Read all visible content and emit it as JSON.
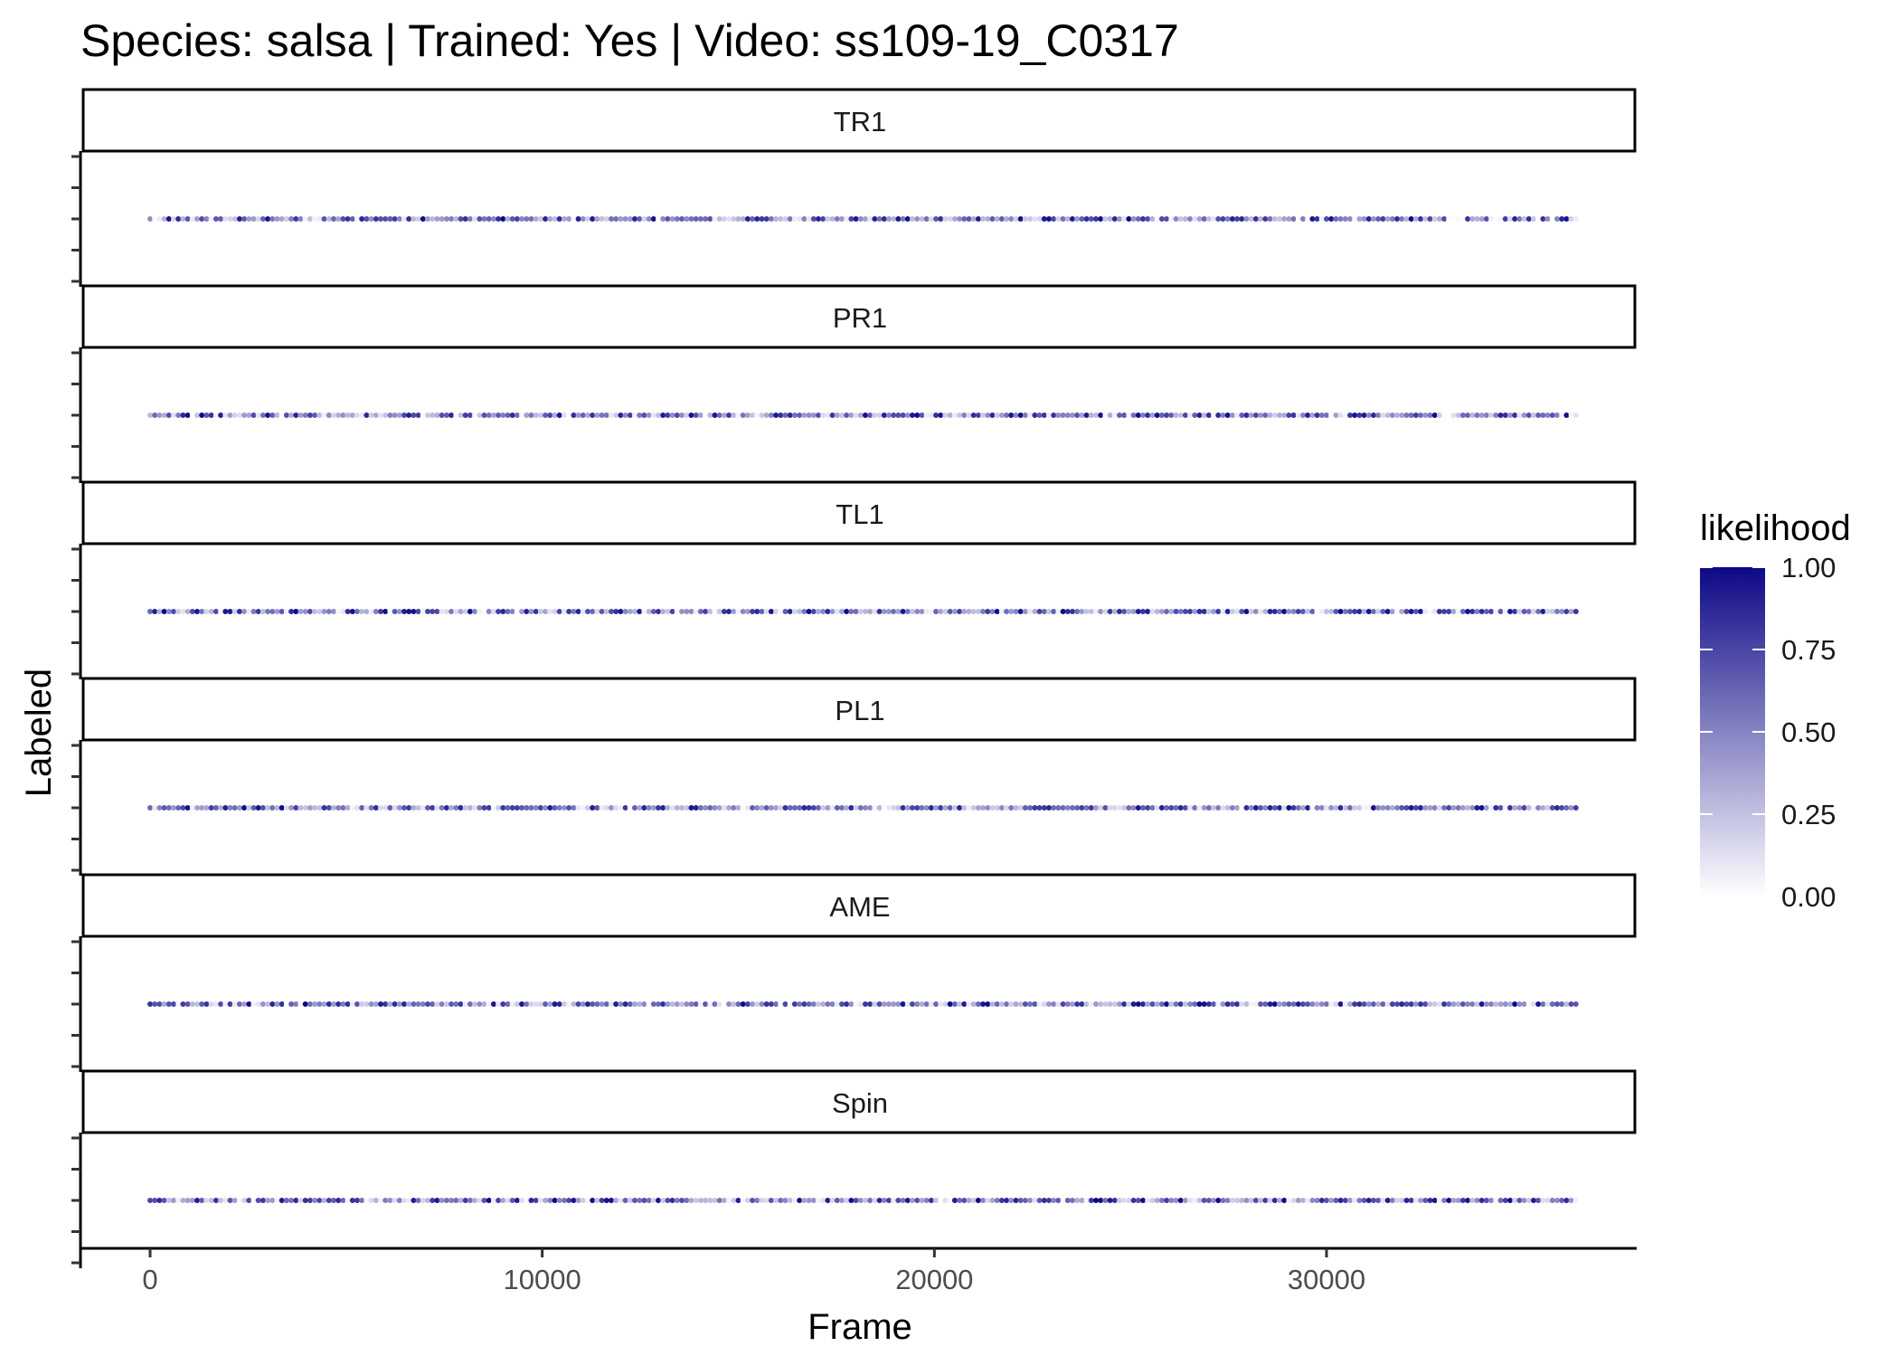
{
  "chart_data": {
    "type": "scatter",
    "title": "Species: salsa | Trained: Yes | Video: ss109-19_C0317",
    "xlabel": "Frame",
    "ylabel": "Labeled",
    "xlim": [
      -1800,
      38000
    ],
    "x_ticks": [
      0,
      10000,
      20000,
      30000
    ],
    "x_tick_labels": [
      "0",
      "10000",
      "20000",
      "30000"
    ],
    "grid": false,
    "legend": {
      "title": "likelihood",
      "position": "right",
      "type": "colorbar",
      "range": [
        0,
        1
      ],
      "ticks": [
        0,
        0.25,
        0.5,
        0.75,
        1
      ],
      "tick_labels": [
        "0.00",
        "0.25",
        "0.50",
        "0.75",
        "1.00"
      ],
      "low_color": "#ffffff",
      "high_color": "#0d0887"
    },
    "facets": [
      {
        "label": "TR1",
        "frame_range": [
          0,
          36400
        ]
      },
      {
        "label": "PR1",
        "frame_range": [
          0,
          36400
        ]
      },
      {
        "label": "TL1",
        "frame_range": [
          0,
          36400
        ]
      },
      {
        "label": "PL1",
        "frame_range": [
          0,
          36400
        ]
      },
      {
        "label": "AME",
        "frame_range": [
          0,
          36400
        ]
      },
      {
        "label": "Spin",
        "frame_range": [
          0,
          36400
        ]
      }
    ]
  },
  "colors": {
    "low": "#ffffff",
    "high": "#0d0887",
    "axis": "#000000",
    "tick_text": "#4d4d4d"
  }
}
